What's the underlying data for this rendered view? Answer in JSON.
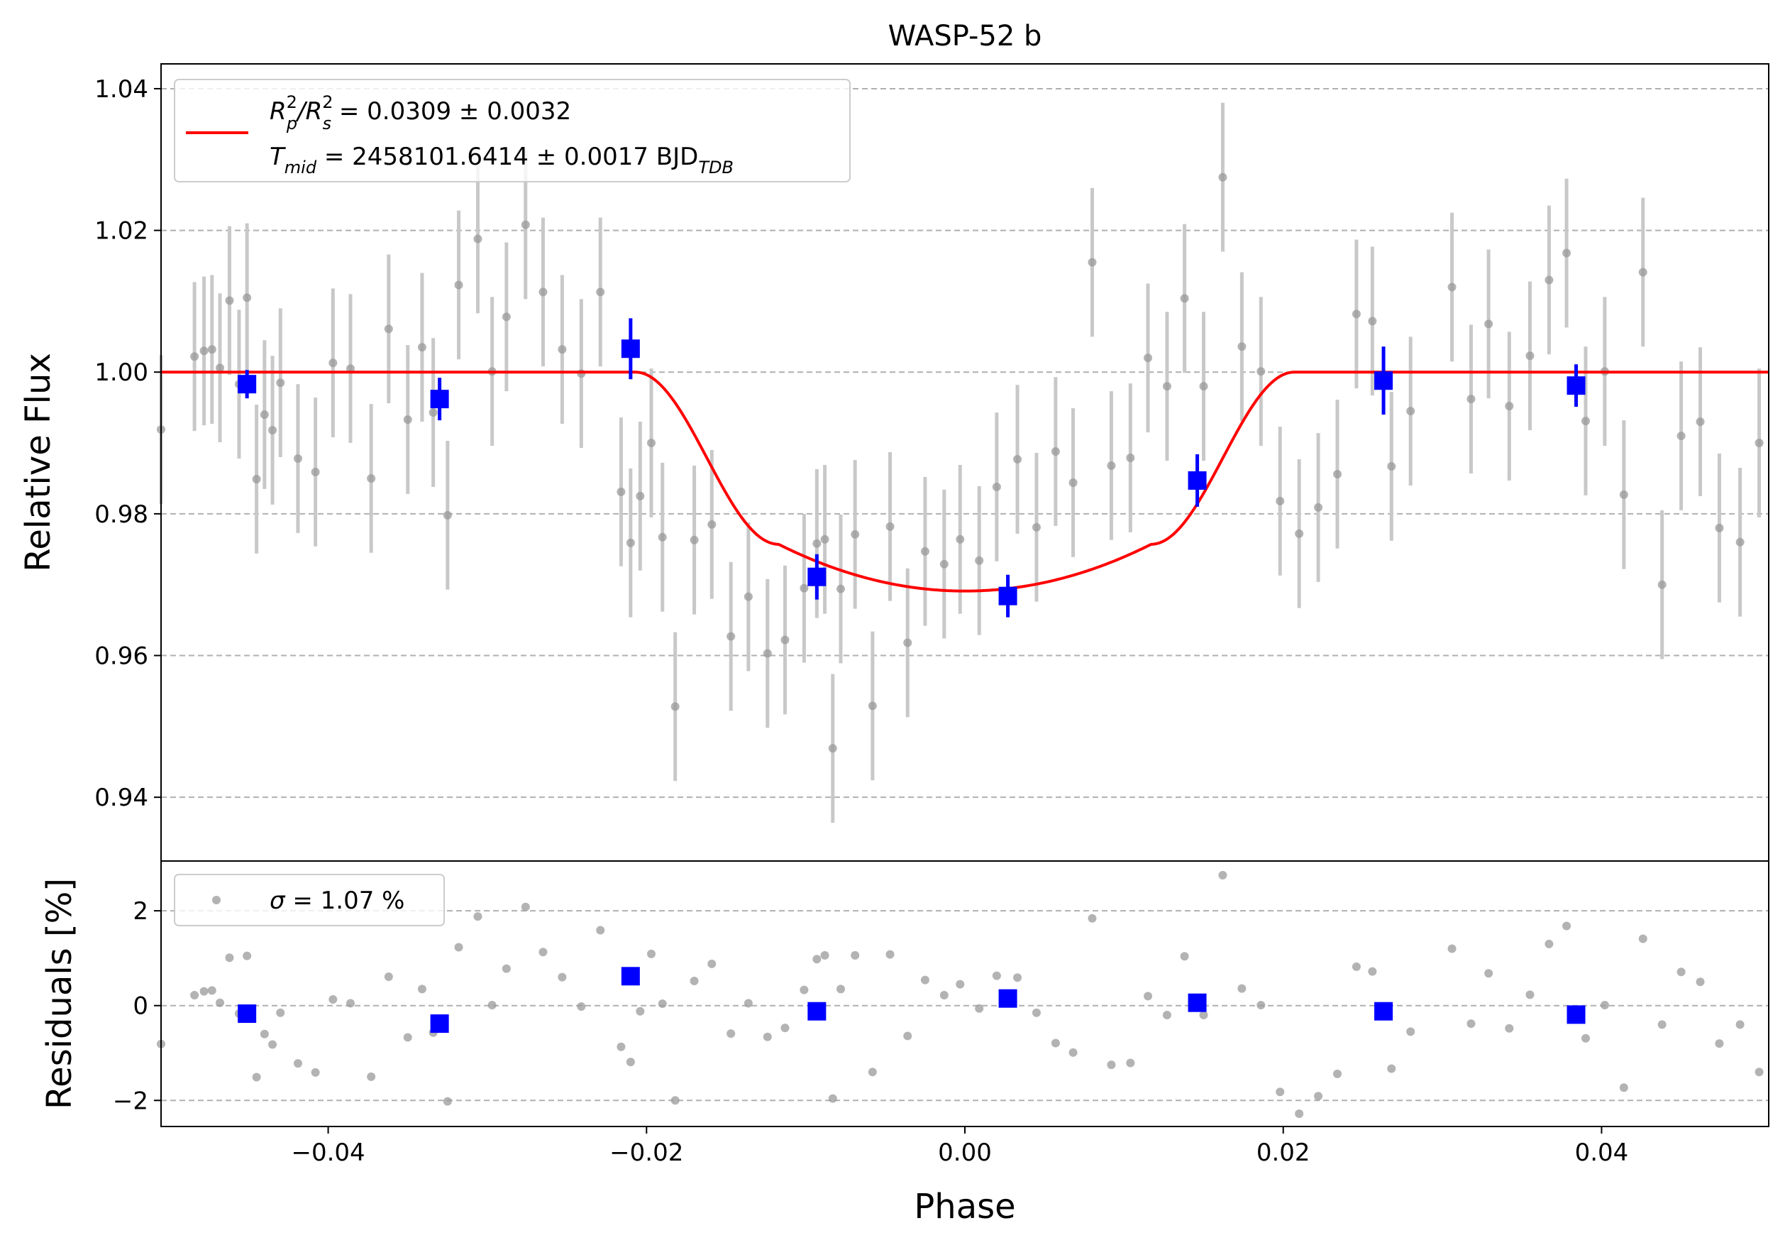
{
  "chart_data": {
    "type": "scatter",
    "title": "WASP-52 b",
    "xlabel": "Phase",
    "xlim": [
      -0.0505,
      0.0505
    ],
    "xticks": [
      -0.04,
      -0.02,
      0.0,
      0.02,
      0.04
    ],
    "xtick_labels": [
      "−0.04",
      "−0.02",
      "0.00",
      "0.02",
      "0.04"
    ],
    "grid": "horizontal dashed",
    "colors": {
      "model": "#ff0000",
      "binned": "#0000ff",
      "data": "#999999",
      "errorbar": "#c8c8c8",
      "grid": "#b0b0b0"
    },
    "top_panel": {
      "ylabel": "Relative Flux",
      "ylim": [
        0.931,
        1.0435
      ],
      "yticks": [
        0.94,
        0.96,
        0.98,
        1.0,
        1.02,
        1.04
      ],
      "ytick_labels": [
        "0.94",
        "0.96",
        "0.98",
        "1.00",
        "1.02",
        "1.04"
      ],
      "legend": {
        "placement": "upper-left",
        "line1": {
          "a": "R",
          "a_sup": "2",
          "a_sub": "p",
          "sep": "/R",
          "b_sup": "2",
          "b_sub": "s",
          "value": " = 0.0309 ± 0.0032"
        },
        "line2": {
          "a": "T",
          "a_sub": "mid",
          "value": " = 2458101.6414 ± 0.0017 BJD",
          "unit_sub": "TDB"
        }
      },
      "data": {
        "x": [
          -0.0505,
          -0.0484,
          -0.0478,
          -0.0473,
          -0.0468,
          -0.0462,
          -0.0456,
          -0.0451,
          -0.0445,
          -0.044,
          -0.0435,
          -0.043,
          -0.0419,
          -0.0408,
          -0.0397,
          -0.0386,
          -0.0373,
          -0.0362,
          -0.035,
          -0.0341,
          -0.0334,
          -0.0325,
          -0.0318,
          -0.0306,
          -0.0297,
          -0.0288,
          -0.0276,
          -0.0265,
          -0.0253,
          -0.0241,
          -0.0229,
          -0.0216,
          -0.021,
          -0.0204,
          -0.0197,
          -0.019,
          -0.0182,
          -0.017,
          -0.0159,
          -0.0147,
          -0.0136,
          -0.0124,
          -0.0113,
          -0.0101,
          -0.0093,
          -0.0088,
          -0.0083,
          -0.0078,
          -0.0069,
          -0.0058,
          -0.0047,
          -0.0036,
          -0.0025,
          -0.0013,
          -0.0003,
          0.0009,
          0.002,
          0.0033,
          0.0045,
          0.0057,
          0.0068,
          0.008,
          0.0092,
          0.0104,
          0.0115,
          0.0127,
          0.0138,
          0.015,
          0.0162,
          0.0174,
          0.0186,
          0.0198,
          0.021,
          0.0222,
          0.0234,
          0.0246,
          0.0256,
          0.0268,
          0.028,
          0.0306,
          0.0318,
          0.0329,
          0.0342,
          0.0355,
          0.0367,
          0.0378,
          0.039,
          0.0402,
          0.0414,
          0.0426,
          0.0438,
          0.045,
          0.0462,
          0.0474,
          0.0487,
          0.0499
        ],
        "y": [
          0.9919,
          1.0022,
          1.003,
          1.0032,
          1.0006,
          1.0101,
          0.9983,
          1.0105,
          0.9849,
          0.994,
          0.9918,
          0.9985,
          0.9878,
          0.9859,
          1.0013,
          1.0005,
          0.985,
          1.0061,
          0.9933,
          1.0035,
          0.9943,
          0.9798,
          1.0123,
          1.0188,
          1.0001,
          1.0078,
          1.0208,
          1.0113,
          1.0032,
          0.9998,
          1.0113,
          0.9831,
          0.9759,
          0.9825,
          0.99,
          0.9767,
          0.9528,
          0.9763,
          0.9785,
          0.9627,
          0.9683,
          0.9603,
          0.9622,
          0.9695,
          0.9758,
          0.9764,
          0.9469,
          0.9694,
          0.9771,
          0.9529,
          0.9782,
          0.9618,
          0.9747,
          0.9729,
          0.9764,
          0.9734,
          0.9838,
          0.9877,
          0.9781,
          0.9888,
          0.9844,
          1.0155,
          0.9868,
          0.9879,
          1.002,
          0.998,
          1.0104,
          0.998,
          1.0275,
          1.0036,
          1.0001,
          0.9818,
          0.9772,
          0.9809,
          0.9856,
          1.0082,
          1.0072,
          0.9867,
          0.9945,
          1.012,
          0.9962,
          1.0068,
          0.9952,
          1.0023,
          1.013,
          1.0168,
          0.9931,
          1.0001,
          0.9827,
          1.0141,
          0.97,
          0.991,
          0.993,
          0.978,
          0.976,
          0.99
        ],
        "yerr": 0.0105
      },
      "binned": {
        "x": [
          -0.0451,
          -0.033,
          -0.021,
          -0.0093,
          0.0027,
          0.0146,
          0.0263,
          0.0384
        ],
        "y": [
          0.9983,
          0.9962,
          1.0033,
          0.9711,
          0.9684,
          0.9847,
          0.9988,
          0.9981
        ],
        "yerr": [
          0.002,
          0.003,
          0.0043,
          0.0032,
          0.003,
          0.0037,
          0.0048,
          0.003
        ]
      },
      "model": {
        "depth": 0.0309,
        "t_mid": 0.0,
        "half_width_total": 0.0207,
        "half_width_flat": 0.0117
      }
    },
    "bottom_panel": {
      "ylabel": "Residuals [%]",
      "ylim": [
        -2.55,
        3.05
      ],
      "yticks": [
        -2,
        0,
        2
      ],
      "ytick_labels": [
        "−2",
        "0",
        "2"
      ],
      "legend": {
        "placement": "upper-left",
        "sigma_symbol": "σ",
        "text": " = 1.07 %"
      },
      "data": {
        "x": [
          -0.0505,
          -0.0484,
          -0.0478,
          -0.0473,
          -0.0468,
          -0.0462,
          -0.0456,
          -0.0451,
          -0.0445,
          -0.044,
          -0.0435,
          -0.043,
          -0.0419,
          -0.0408,
          -0.0397,
          -0.0386,
          -0.0373,
          -0.0362,
          -0.035,
          -0.0341,
          -0.0334,
          -0.0325,
          -0.0318,
          -0.0306,
          -0.0297,
          -0.0288,
          -0.0276,
          -0.0265,
          -0.0253,
          -0.0241,
          -0.0229,
          -0.0216,
          -0.021,
          -0.0204,
          -0.0197,
          -0.019,
          -0.0182,
          -0.017,
          -0.0159,
          -0.0147,
          -0.0136,
          -0.0124,
          -0.0113,
          -0.0101,
          -0.0093,
          -0.0088,
          -0.0083,
          -0.0078,
          -0.0069,
          -0.0058,
          -0.0047,
          -0.0036,
          -0.0025,
          -0.0013,
          -0.0003,
          0.0009,
          0.002,
          0.0033,
          0.0045,
          0.0057,
          0.0068,
          0.008,
          0.0092,
          0.0104,
          0.0115,
          0.0127,
          0.0138,
          0.015,
          0.0162,
          0.0174,
          0.0186,
          0.0198,
          0.021,
          0.0222,
          0.0234,
          0.0246,
          0.0256,
          0.0268,
          0.028,
          0.0306,
          0.0318,
          0.0329,
          0.0342,
          0.0355,
          0.0367,
          0.0378,
          0.039,
          0.0402,
          0.0414,
          0.0426,
          0.0438,
          0.045,
          0.0462,
          0.0474,
          0.0487,
          0.0499
        ],
        "y": [
          -0.81,
          0.22,
          0.3,
          0.32,
          0.06,
          1.01,
          -0.17,
          1.05,
          -1.51,
          -0.6,
          -0.82,
          -0.15,
          -1.22,
          -1.41,
          0.13,
          0.05,
          -1.5,
          0.61,
          -0.67,
          0.35,
          -0.57,
          -2.02,
          1.23,
          1.88,
          0.01,
          0.78,
          2.08,
          1.13,
          0.6,
          -0.02,
          1.59,
          -0.87,
          -1.19,
          -0.12,
          1.09,
          0.04,
          -2.0,
          0.52,
          0.88,
          -0.59,
          0.05,
          -0.66,
          -0.47,
          0.33,
          0.98,
          1.06,
          -1.96,
          0.35,
          1.06,
          -1.4,
          1.08,
          -0.64,
          0.54,
          0.22,
          0.45,
          -0.06,
          0.63,
          0.59,
          -0.15,
          -0.79,
          -0.99,
          1.84,
          -1.25,
          -1.21,
          0.2,
          -0.2,
          1.04,
          -0.2,
          2.75,
          0.36,
          0.01,
          -1.82,
          -2.28,
          -1.91,
          -1.44,
          0.82,
          0.72,
          -1.33,
          -0.55,
          1.2,
          -0.38,
          0.68,
          -0.48,
          0.23,
          1.3,
          1.68,
          -0.69,
          0.01,
          -1.73,
          1.41,
          -0.4,
          0.71,
          0.5,
          -0.8,
          -0.4,
          -1.4
        ]
      },
      "binned": {
        "x": [
          -0.0451,
          -0.033,
          -0.021,
          -0.0093,
          0.0027,
          0.0146,
          0.0263,
          0.0384
        ],
        "y": [
          -0.17,
          -0.38,
          0.62,
          -0.12,
          0.15,
          0.06,
          -0.12,
          -0.19
        ]
      }
    }
  }
}
